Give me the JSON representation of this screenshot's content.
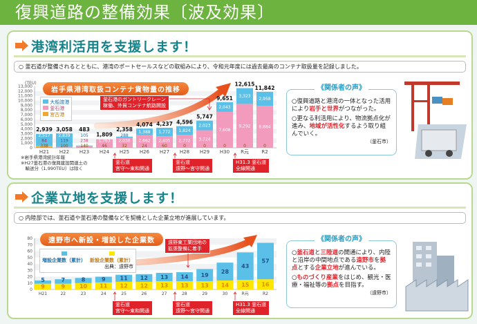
{
  "title": "復興道路の整備効果〔波及効果〕",
  "section1": {
    "heading": "港湾利活用を支援します！",
    "bullet": "○ 釜石道が整備されるとともに、港湾のポートセールスなどの取組みにより、令和元年度には過去最高のコンテナ取扱量を記録しました。",
    "notes": [
      "※岩手県港湾統計年報",
      "※H27釜石港の復興建設関連土の\n　輸送分（1,990TEU）は除く"
    ],
    "callout": "釜石港のガントリークレーン\n稼働、外貿コンテナ航路開設",
    "events": [
      "釜石道\n宮守～東和開通",
      "釜石道\n遠野～宮守開通",
      "H31.3 釜石道\n全線開通"
    ],
    "voice": {
      "title": "《関係者の声》",
      "items": [
        [
          {
            "t": "○復興道路と港湾の一体となった活用により"
          },
          {
            "t": "岩手と世界",
            "hl": true
          },
          {
            "t": "がつながった。"
          }
        ],
        [
          {
            "t": "○更なる利活用により、物流拠点化が進み、"
          },
          {
            "t": "地域が活性化",
            "hl": true
          },
          {
            "t": "するよう取り組んでいく。"
          }
        ]
      ],
      "source": "（釜石市）"
    }
  },
  "section2": {
    "heading": "企業立地を支援します！",
    "bullet": "○ 内陸部では、釜石道や釜石港の整備などを契機とした企業立地が進展しています。",
    "callout": "遠野東工業団地の\n拡張整備に着手",
    "events": [
      "釜石道\n宮守～東和開通",
      "釜石道\n遠野～宮守開通",
      "H31.3 釜石道\n全線開通"
    ],
    "legend_source": "出典：遠野市",
    "voice": {
      "title": "《関係者の声》",
      "items": [
        [
          {
            "t": "○"
          },
          {
            "t": "釜石道",
            "hl": true
          },
          {
            "t": "と"
          },
          {
            "t": "三陸道",
            "hl": true
          },
          {
            "t": "の開通により、内陸と沿岸の中間地点である"
          },
          {
            "t": "遠野市",
            "hl": true
          },
          {
            "t": "を"
          },
          {
            "t": "拠点",
            "hl": true
          },
          {
            "t": "とする"
          },
          {
            "t": "企業立地",
            "hl": true
          },
          {
            "t": "が進んでいる。"
          }
        ],
        [
          {
            "t": "○"
          },
          {
            "t": "ものづくり産業",
            "hl": true
          },
          {
            "t": "をはじめ、観光・医療・福祉等の"
          },
          {
            "t": "拠点",
            "hl": true
          },
          {
            "t": "を目指す。"
          }
        ]
      ],
      "source": "（遠野市）"
    }
  },
  "chart_data": [
    {
      "type": "bar",
      "stacked": true,
      "title": "岩手県港湾取扱コンテナ貨物量の推移",
      "ylabel": "(TEU)",
      "ylim": [
        0,
        13000
      ],
      "yticks": [
        "0",
        "1,000",
        "2,000",
        "3,000",
        "4,000",
        "5,000",
        "6,000",
        "7,000",
        "8,000",
        "9,000",
        "10,000",
        "11,000",
        "12,000",
        "13,000"
      ],
      "categories": [
        "H21",
        "H22",
        "H23",
        "H24",
        "H25",
        "H26",
        "H27",
        "H28",
        "H29",
        "H30",
        "R元",
        "R2"
      ],
      "series": [
        {
          "name": "宮古港",
          "color": "#f0a830",
          "values": [
            338,
            100,
            140,
            46,
            32,
            24,
            60,
            0,
            0,
            0,
            0,
            0
          ],
          "labels": [
            "338",
            "100",
            "140",
            "46",
            "32",
            "24",
            "60",
            "0",
            "0",
            "0",
            "0",
            "0"
          ]
        },
        {
          "name": "釜石港",
          "color": "#f29bbd",
          "values": [
            84,
            119,
            238,
            1763,
            2038,
            2662,
            2405,
            2772,
            3724,
            7608,
            9292,
            8884
          ],
          "labels": [
            "84",
            "119",
            "238",
            "1,763",
            "2,038",
            "2,662",
            "2,405",
            "2,772",
            "3,724",
            "7,608",
            "9,292",
            "8,884"
          ]
        },
        {
          "name": "大船渡港",
          "color": "#5bc0e8",
          "values": [
            2517,
            2839,
            105,
            0,
            288,
            1388,
            1772,
            1824,
            2023,
            2043,
            3323,
            2958
          ],
          "labels": [
            "2,517",
            "2,839",
            "105",
            "",
            "288",
            "1,388",
            "1,772",
            "1,824",
            "2,023",
            "2,043",
            "3,323",
            "2,958"
          ]
        }
      ],
      "totals": [
        "2,939",
        "3,058",
        "483",
        "1,809",
        "2,358",
        "4,074",
        "4,237",
        "4,596",
        "5,747",
        "9,651",
        "12,615",
        "11,842"
      ]
    },
    {
      "type": "bar",
      "stacked": true,
      "title": "遠野市へ新設・増設した企業数",
      "ylim": [
        0,
        80
      ],
      "yticks": [
        "0",
        "10",
        "20",
        "30",
        "40",
        "50",
        "60",
        "70",
        "80"
      ],
      "categories": [
        "H21",
        "22",
        "23",
        "24",
        "25",
        "26",
        "27",
        "28",
        "29",
        "30",
        "R元",
        "R2"
      ],
      "series": [
        {
          "name": "新設企業数（累計）",
          "color": "#ffe600",
          "values": [
            9,
            9,
            10,
            11,
            12,
            12,
            13,
            13,
            13,
            14,
            15,
            16
          ]
        },
        {
          "name": "増設企業数（累計）",
          "color": "#5bc0e8",
          "values": [
            5,
            7,
            8,
            9,
            11,
            12,
            13,
            14,
            19,
            28,
            43,
            57
          ]
        }
      ]
    }
  ]
}
